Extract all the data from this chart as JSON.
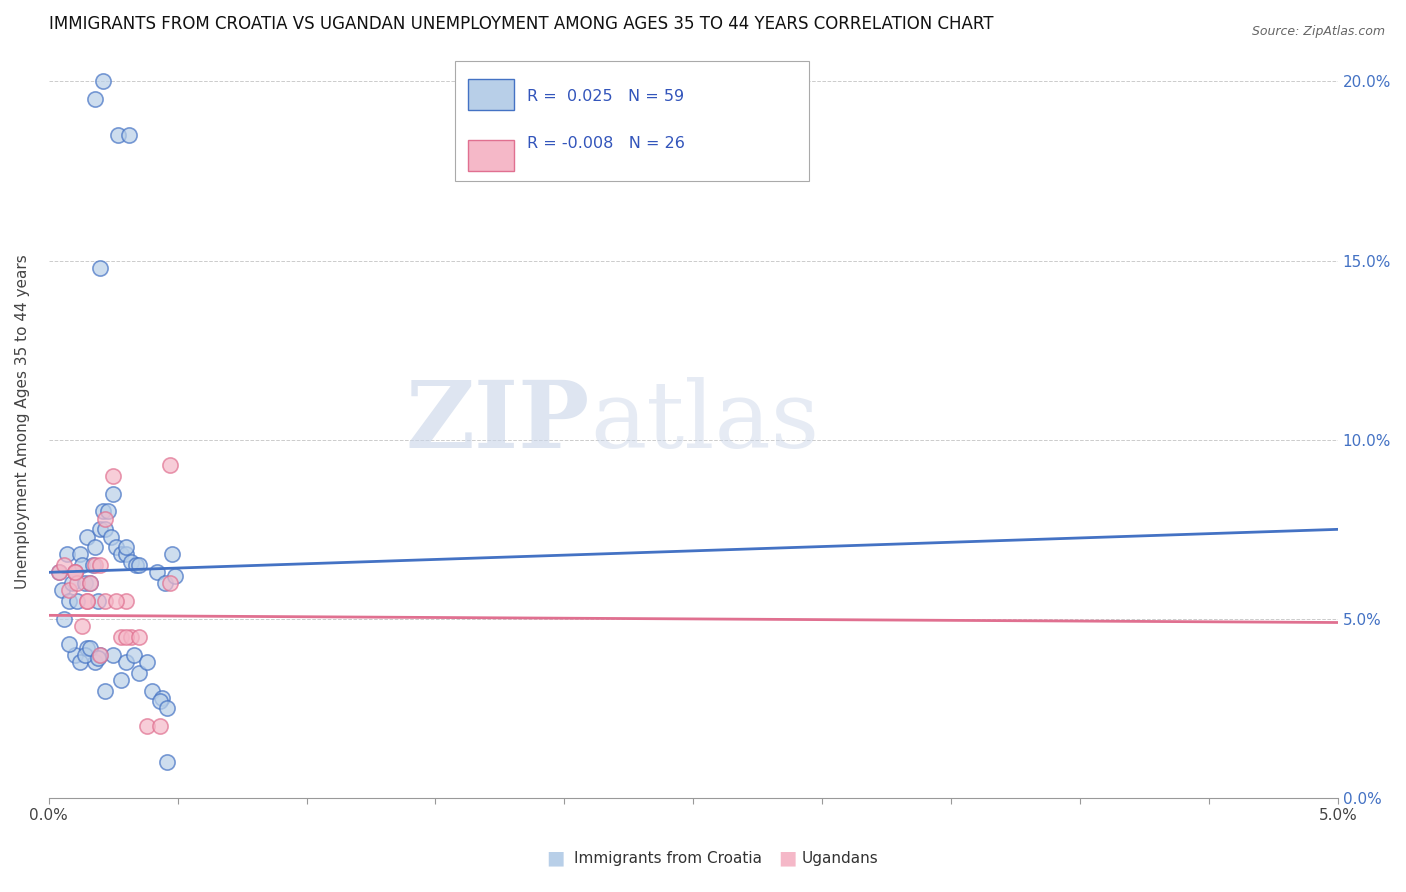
{
  "title": "IMMIGRANTS FROM CROATIA VS UGANDAN UNEMPLOYMENT AMONG AGES 35 TO 44 YEARS CORRELATION CHART",
  "source": "Source: ZipAtlas.com",
  "ylabel": "Unemployment Among Ages 35 to 44 years",
  "watermark_zip": "ZIP",
  "watermark_atlas": "atlas",
  "blue_scatter_x": [
    0.0018,
    0.0021,
    0.0027,
    0.0031,
    0.0004,
    0.0005,
    0.0006,
    0.0007,
    0.0008,
    0.0009,
    0.001,
    0.0011,
    0.0012,
    0.0013,
    0.0014,
    0.0015,
    0.0016,
    0.0017,
    0.0018,
    0.0019,
    0.002,
    0.0021,
    0.0022,
    0.0023,
    0.0024,
    0.0026,
    0.0028,
    0.003,
    0.0032,
    0.0034,
    0.001,
    0.0012,
    0.0015,
    0.0018,
    0.002,
    0.0025,
    0.003,
    0.0035,
    0.004,
    0.0044,
    0.0008,
    0.0014,
    0.0016,
    0.0019,
    0.0022,
    0.0028,
    0.0033,
    0.0038,
    0.0043,
    0.0046,
    0.002,
    0.0025,
    0.003,
    0.0035,
    0.0042,
    0.0045,
    0.0048,
    0.0046,
    0.0049
  ],
  "blue_scatter_y": [
    0.195,
    0.2,
    0.185,
    0.185,
    0.063,
    0.058,
    0.05,
    0.068,
    0.055,
    0.06,
    0.063,
    0.055,
    0.068,
    0.065,
    0.06,
    0.073,
    0.06,
    0.065,
    0.07,
    0.055,
    0.075,
    0.08,
    0.075,
    0.08,
    0.073,
    0.07,
    0.068,
    0.068,
    0.066,
    0.065,
    0.04,
    0.038,
    0.042,
    0.038,
    0.04,
    0.04,
    0.038,
    0.035,
    0.03,
    0.028,
    0.043,
    0.04,
    0.042,
    0.039,
    0.03,
    0.033,
    0.04,
    0.038,
    0.027,
    0.025,
    0.148,
    0.085,
    0.07,
    0.065,
    0.063,
    0.06,
    0.068,
    0.01,
    0.062
  ],
  "pink_scatter_x": [
    0.0004,
    0.0006,
    0.0008,
    0.001,
    0.0011,
    0.0013,
    0.0015,
    0.0016,
    0.0018,
    0.002,
    0.0022,
    0.0025,
    0.0028,
    0.003,
    0.0032,
    0.001,
    0.0015,
    0.002,
    0.0022,
    0.0026,
    0.003,
    0.0035,
    0.0038,
    0.0043,
    0.0047,
    0.0047
  ],
  "pink_scatter_y": [
    0.063,
    0.065,
    0.058,
    0.063,
    0.06,
    0.048,
    0.055,
    0.06,
    0.065,
    0.04,
    0.055,
    0.09,
    0.045,
    0.055,
    0.045,
    0.063,
    0.055,
    0.065,
    0.078,
    0.055,
    0.045,
    0.045,
    0.02,
    0.02,
    0.093,
    0.06
  ],
  "blue_line_color": "#4472c4",
  "pink_line_color": "#e07090",
  "blue_scatter_facecolor": "#b8cfe8",
  "pink_scatter_facecolor": "#f5b8c8",
  "xlim": [
    0.0,
    0.05
  ],
  "ylim": [
    0.0,
    0.21
  ],
  "ytick_positions": [
    0.0,
    0.05,
    0.1,
    0.15,
    0.2
  ],
  "ytick_labels": [
    "0.0%",
    "5.0%",
    "10.0%",
    "15.0%",
    "20.0%"
  ],
  "xtick_positions": [
    0.0,
    0.005,
    0.01,
    0.015,
    0.02,
    0.025,
    0.03,
    0.035,
    0.04,
    0.045,
    0.05
  ],
  "xtick_labels": [
    "0.0%",
    "",
    "",
    "",
    "",
    "",
    "",
    "",
    "",
    "",
    "5.0%"
  ],
  "grid_color": "#cccccc",
  "background_color": "#ffffff",
  "legend_R_blue": "0.025",
  "legend_N_blue": "59",
  "legend_R_pink": "-0.008",
  "legend_N_pink": "26"
}
